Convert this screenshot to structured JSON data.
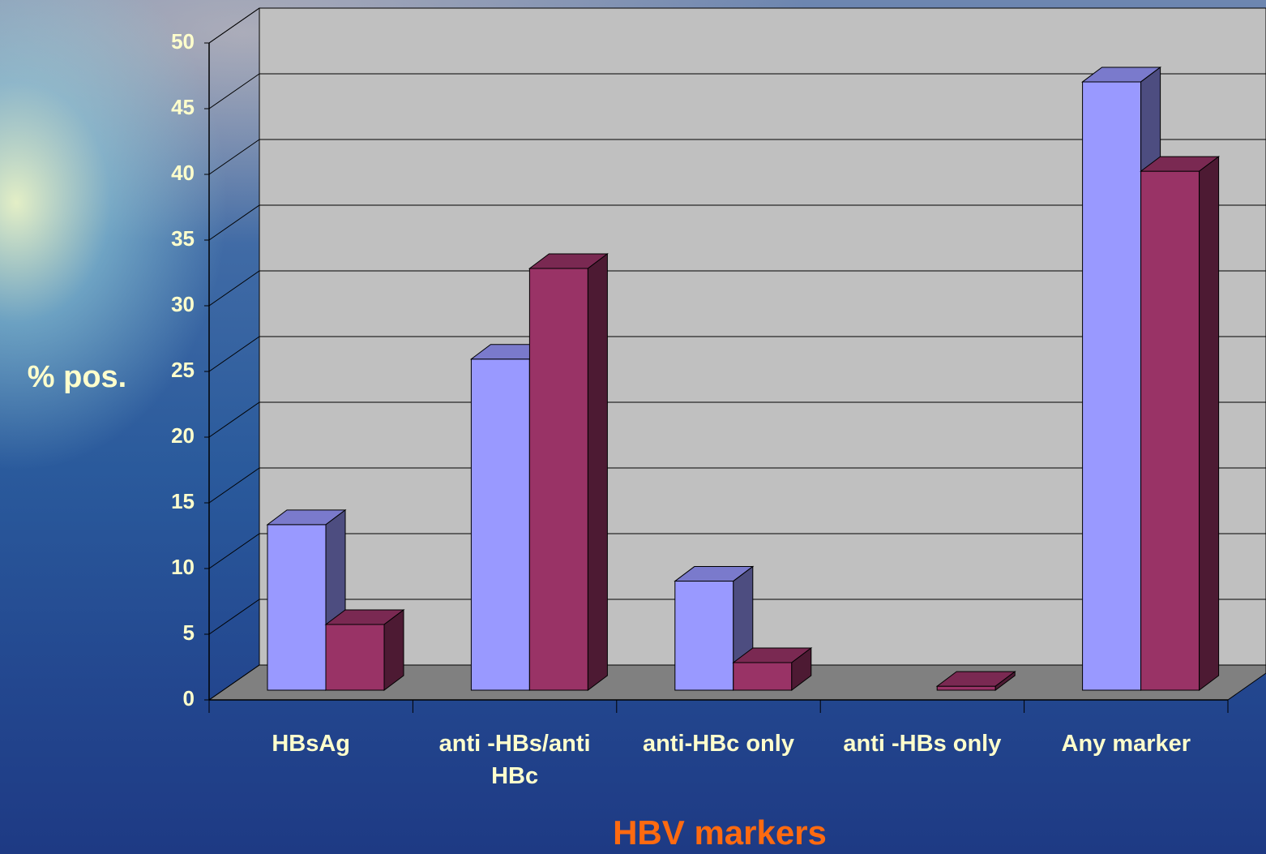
{
  "chart_data": {
    "type": "bar3d",
    "x_label": "HBV markers",
    "y_label": "% pos.",
    "categories": [
      "HBsAg",
      "anti -HBs/anti HBc",
      "anti-HBc only",
      "anti -HBs only",
      "Any marker"
    ],
    "series": [
      {
        "color": "#9999ff",
        "values": [
          12.6,
          25.2,
          8.3,
          0,
          46.3
        ]
      },
      {
        "color": "#993366",
        "values": [
          5.0,
          32.1,
          2.1,
          0.3,
          39.5
        ]
      }
    ],
    "ylim": [
      0,
      50
    ],
    "yticks": [
      0,
      5,
      10,
      15,
      20,
      25,
      30,
      35,
      40,
      45,
      50
    ],
    "grid": true
  }
}
